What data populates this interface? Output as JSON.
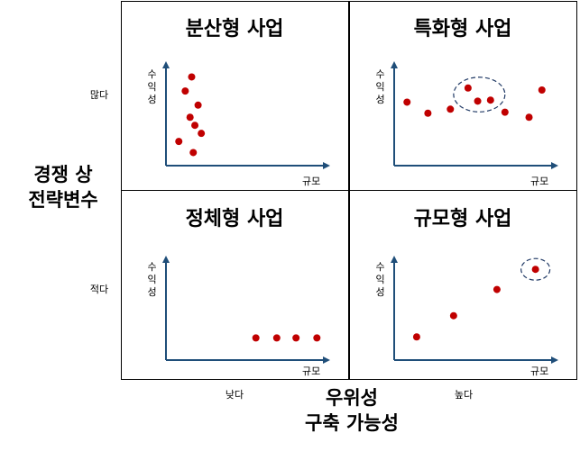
{
  "quadrants": [
    {
      "id": "q1",
      "title": "분산형 사업",
      "y_axis_label": "수익성",
      "x_axis_label": "규모"
    },
    {
      "id": "q2",
      "title": "특화형 사업",
      "y_axis_label": "수익성",
      "x_axis_label": "규모"
    },
    {
      "id": "q3",
      "title": "정체형 사업",
      "y_axis_label": "수익성",
      "x_axis_label": "규모"
    },
    {
      "id": "q4",
      "title": "규모형 사업",
      "y_axis_label": "수익성",
      "x_axis_label": "규모"
    }
  ],
  "row_labels": {
    "top": "많다",
    "bottom": "적다"
  },
  "col_labels": {
    "left": "낮다",
    "right": "높다"
  },
  "left_axis_title": {
    "line1": "경쟁 상",
    "line2": "전략변수"
  },
  "bottom_axis_title": {
    "line1": "우위성",
    "line2": "구축 가능성"
  },
  "colors": {
    "point": "#c00000",
    "axis": "#1f4e79",
    "ellipse": "#1f3864"
  },
  "chart_data": [
    {
      "type": "scatter",
      "title": "분산형 사업",
      "xlabel": "규모",
      "ylabel": "수익성",
      "points": [
        [
          0.16,
          0.88
        ],
        [
          0.12,
          0.74
        ],
        [
          0.2,
          0.6
        ],
        [
          0.15,
          0.48
        ],
        [
          0.18,
          0.4
        ],
        [
          0.22,
          0.32
        ],
        [
          0.08,
          0.24
        ],
        [
          0.17,
          0.13
        ]
      ]
    },
    {
      "type": "scatter",
      "title": "특화형 사업",
      "xlabel": "규모",
      "ylabel": "수익성",
      "points": [
        [
          0.08,
          0.63
        ],
        [
          0.21,
          0.52
        ],
        [
          0.35,
          0.56
        ],
        [
          0.46,
          0.77
        ],
        [
          0.52,
          0.64
        ],
        [
          0.6,
          0.65
        ],
        [
          0.69,
          0.53
        ],
        [
          0.84,
          0.48
        ],
        [
          0.92,
          0.75
        ]
      ],
      "highlighted": [
        [
          0.46,
          0.77
        ],
        [
          0.52,
          0.64
        ],
        [
          0.6,
          0.65
        ]
      ]
    },
    {
      "type": "scatter",
      "title": "정체형 사업",
      "xlabel": "규모",
      "ylabel": "수익성",
      "points": [
        [
          0.56,
          0.22
        ],
        [
          0.69,
          0.22
        ],
        [
          0.81,
          0.22
        ],
        [
          0.94,
          0.22
        ]
      ]
    },
    {
      "type": "scatter",
      "title": "규모형 사업",
      "xlabel": "규모",
      "ylabel": "수익성",
      "points": [
        [
          0.14,
          0.23
        ],
        [
          0.37,
          0.44
        ],
        [
          0.64,
          0.7
        ],
        [
          0.88,
          0.9
        ]
      ],
      "highlighted": [
        [
          0.88,
          0.9
        ]
      ]
    }
  ]
}
